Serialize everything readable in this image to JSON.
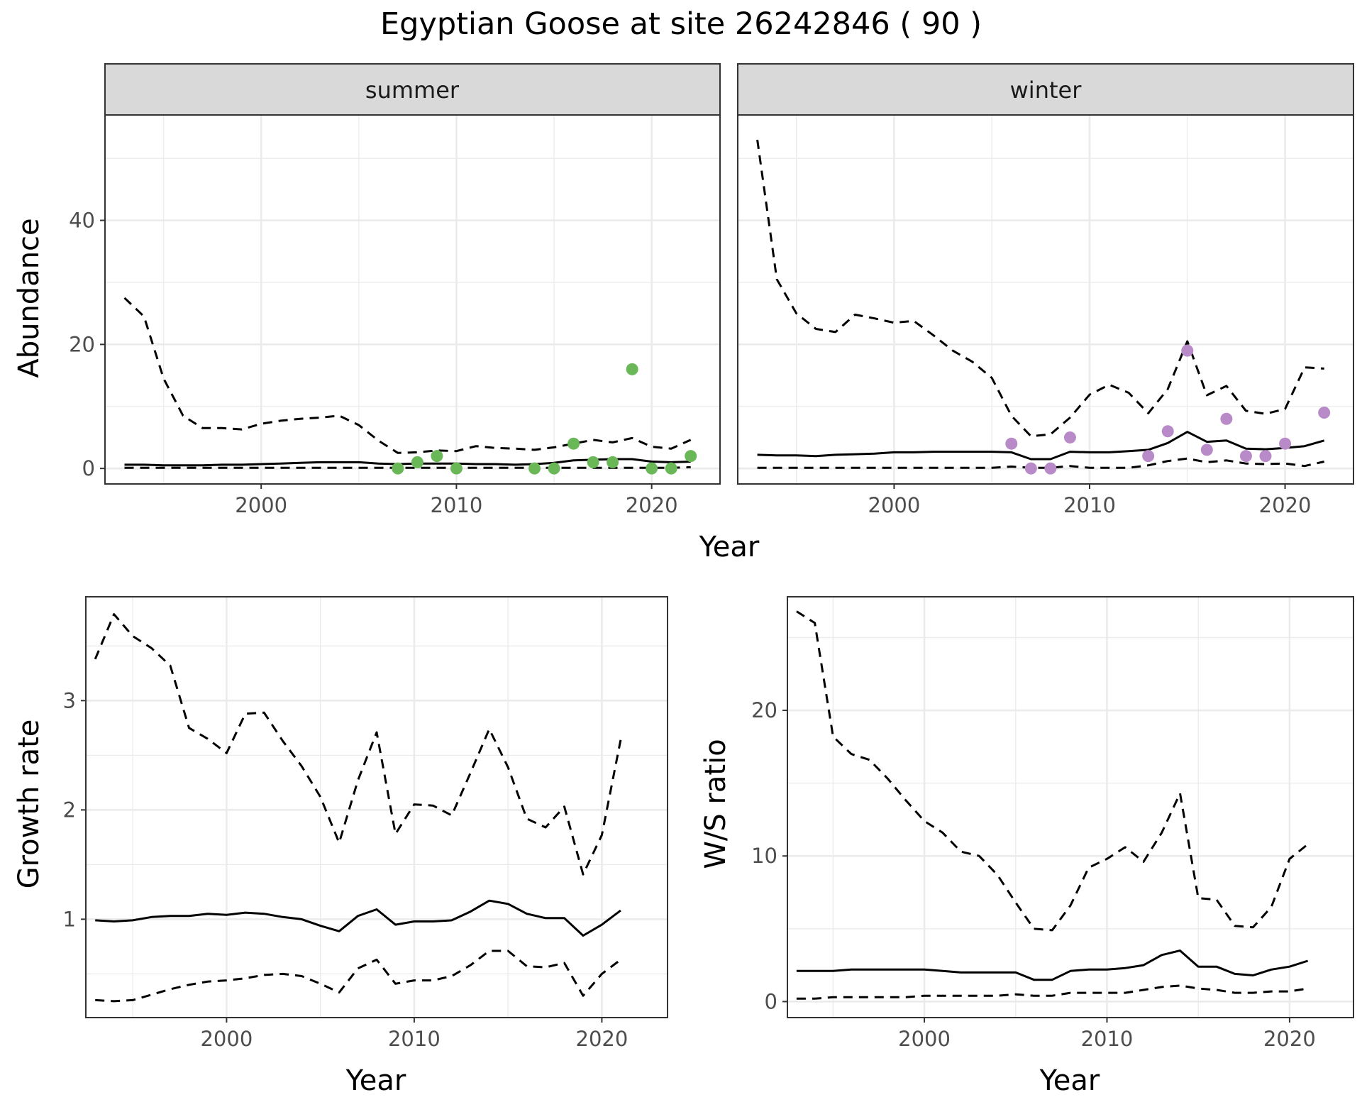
{
  "figure": {
    "title": "Egyptian Goose at site 26242846 ( 90 )",
    "colors": {
      "summer_points": "#6ab758",
      "winter_points": "#b98ac8",
      "lines": "#000000",
      "strip_fill": "#d9d9d9",
      "grid": "#ebebeb"
    }
  },
  "chart_data": [
    {
      "id": "abundance",
      "type": "line",
      "facets": [
        "summer",
        "winter"
      ],
      "shared_axis": true,
      "xlabel": "Year",
      "ylabel": "Abundance",
      "xlim": [
        1992,
        2023.5
      ],
      "ylim": [
        -2.5,
        57
      ],
      "xticks": [
        2000,
        2010,
        2020
      ],
      "yticks": [
        0,
        20,
        40
      ],
      "grid": true,
      "panels": [
        {
          "facet": "summer",
          "estimate": {
            "x": [
              1993,
              1994,
              1995,
              1996,
              1997,
              1998,
              1999,
              2000,
              2001,
              2002,
              2003,
              2004,
              2005,
              2006,
              2007,
              2008,
              2009,
              2010,
              2011,
              2012,
              2013,
              2014,
              2015,
              2016,
              2017,
              2018,
              2019,
              2020,
              2021,
              2022
            ],
            "y": [
              0.6,
              0.6,
              0.5,
              0.5,
              0.5,
              0.6,
              0.6,
              0.7,
              0.8,
              0.9,
              1.0,
              1.0,
              1.0,
              0.8,
              0.7,
              0.8,
              0.8,
              0.8,
              0.7,
              0.7,
              0.6,
              0.7,
              0.9,
              1.3,
              1.4,
              1.5,
              1.5,
              1.1,
              1.0,
              1.1
            ]
          },
          "lower": {
            "x": [
              1993,
              1994,
              1995,
              1996,
              1997,
              1998,
              1999,
              2000,
              2001,
              2002,
              2003,
              2004,
              2005,
              2006,
              2007,
              2008,
              2009,
              2010,
              2011,
              2012,
              2013,
              2014,
              2015,
              2016,
              2017,
              2018,
              2019,
              2020,
              2021,
              2022
            ],
            "y": [
              0.1,
              0.1,
              0.1,
              0.1,
              0.1,
              0.1,
              0.1,
              0.1,
              0.1,
              0.1,
              0.1,
              0.1,
              0.1,
              0.1,
              0.1,
              0.1,
              0.1,
              0.1,
              0.1,
              0.1,
              0.1,
              0.1,
              0.1,
              0.1,
              0.1,
              0.1,
              0.1,
              0.1,
              0.1,
              0.2
            ]
          },
          "upper": {
            "x": [
              1993,
              1994,
              1995,
              1996,
              1997,
              1998,
              1999,
              2000,
              2001,
              2002,
              2003,
              2004,
              2005,
              2006,
              2007,
              2008,
              2009,
              2010,
              2011,
              2012,
              2013,
              2014,
              2015,
              2016,
              2017,
              2018,
              2019,
              2020,
              2021,
              2022
            ],
            "y": [
              27.5,
              24.5,
              14.5,
              8.5,
              6.5,
              6.5,
              6.3,
              7.2,
              7.7,
              8.0,
              8.2,
              8.5,
              7.0,
              4.5,
              2.5,
              2.6,
              2.9,
              2.8,
              3.6,
              3.3,
              3.2,
              3.0,
              3.4,
              4.0,
              4.6,
              4.2,
              4.9,
              3.5,
              3.2,
              4.6
            ]
          },
          "observed": {
            "x": [
              2007,
              2008,
              2009,
              2010,
              2014,
              2015,
              2016,
              2017,
              2018,
              2019,
              2020,
              2021,
              2022
            ],
            "y": [
              0,
              1,
              2,
              0,
              0,
              0,
              4,
              1,
              1,
              16,
              0,
              0,
              2
            ]
          }
        },
        {
          "facet": "winter",
          "estimate": {
            "x": [
              1993,
              1994,
              1995,
              1996,
              1997,
              1998,
              1999,
              2000,
              2001,
              2002,
              2003,
              2004,
              2005,
              2006,
              2007,
              2008,
              2009,
              2010,
              2011,
              2012,
              2013,
              2014,
              2015,
              2016,
              2017,
              2018,
              2019,
              2020,
              2021,
              2022
            ],
            "y": [
              2.2,
              2.1,
              2.1,
              2.0,
              2.2,
              2.3,
              2.4,
              2.6,
              2.6,
              2.7,
              2.7,
              2.7,
              2.7,
              2.6,
              1.5,
              1.5,
              2.7,
              2.6,
              2.6,
              2.8,
              3.0,
              4.1,
              5.9,
              4.3,
              4.5,
              3.2,
              3.1,
              3.3,
              3.6,
              4.5
            ]
          },
          "lower": {
            "x": [
              1993,
              1994,
              1995,
              1996,
              1997,
              1998,
              1999,
              2000,
              2001,
              2002,
              2003,
              2004,
              2005,
              2006,
              2007,
              2008,
              2009,
              2010,
              2011,
              2012,
              2013,
              2014,
              2015,
              2016,
              2017,
              2018,
              2019,
              2020,
              2021,
              2022
            ],
            "y": [
              0.1,
              0.1,
              0.1,
              0.1,
              0.1,
              0.1,
              0.1,
              0.1,
              0.1,
              0.1,
              0.1,
              0.1,
              0.1,
              0.3,
              0.1,
              0.1,
              0.4,
              0.1,
              0.1,
              0.1,
              0.5,
              1.2,
              1.6,
              1.0,
              1.3,
              0.8,
              0.7,
              0.8,
              0.4,
              1.1
            ]
          },
          "upper": {
            "x": [
              1993,
              1994,
              1995,
              1996,
              1997,
              1998,
              1999,
              2000,
              2001,
              2002,
              2003,
              2004,
              2005,
              2006,
              2007,
              2008,
              2009,
              2010,
              2011,
              2012,
              2013,
              2014,
              2015,
              2016,
              2017,
              2018,
              2019,
              2020,
              2021,
              2022
            ],
            "y": [
              53.0,
              30.5,
              25.0,
              22.5,
              22.0,
              24.8,
              24.2,
              23.5,
              23.8,
              21.5,
              19.0,
              17.2,
              14.6,
              8.5,
              5.2,
              5.5,
              8.2,
              11.9,
              13.5,
              12.2,
              8.9,
              12.8,
              20.5,
              11.8,
              13.3,
              9.3,
              8.8,
              9.6,
              16.3,
              16.1
            ]
          },
          "observed": {
            "x": [
              2006,
              2007,
              2008,
              2009,
              2013,
              2014,
              2015,
              2016,
              2017,
              2018,
              2019,
              2020,
              2022
            ],
            "y": [
              4,
              0,
              0,
              5,
              2,
              6,
              19,
              3,
              8,
              2,
              2,
              4,
              9
            ]
          }
        }
      ]
    },
    {
      "id": "growth",
      "type": "line",
      "xlabel": "Year",
      "ylabel": "Growth rate",
      "xlim": [
        1992.5,
        2023.5
      ],
      "ylim": [
        0.1,
        3.95
      ],
      "xticks": [
        2000,
        2010,
        2020
      ],
      "yticks": [
        1,
        2,
        3
      ],
      "grid": true,
      "estimate": {
        "x": [
          1993,
          1994,
          1995,
          1996,
          1997,
          1998,
          1999,
          2000,
          2001,
          2002,
          2003,
          2004,
          2005,
          2006,
          2007,
          2008,
          2009,
          2010,
          2011,
          2012,
          2013,
          2014,
          2015,
          2016,
          2017,
          2018,
          2019,
          2020,
          2021
        ],
        "y": [
          0.99,
          0.98,
          0.99,
          1.02,
          1.03,
          1.03,
          1.05,
          1.04,
          1.06,
          1.05,
          1.02,
          1.0,
          0.94,
          0.89,
          1.03,
          1.09,
          0.95,
          0.98,
          0.98,
          0.99,
          1.07,
          1.17,
          1.14,
          1.05,
          1.01,
          1.01,
          0.85,
          0.95,
          1.08
        ]
      },
      "lower": {
        "x": [
          1993,
          1994,
          1995,
          1996,
          1997,
          1998,
          1999,
          2000,
          2001,
          2002,
          2003,
          2004,
          2005,
          2006,
          2007,
          2008,
          2009,
          2010,
          2011,
          2012,
          2013,
          2014,
          2015,
          2016,
          2017,
          2018,
          2019,
          2020,
          2021
        ],
        "y": [
          0.26,
          0.25,
          0.26,
          0.31,
          0.36,
          0.4,
          0.43,
          0.44,
          0.46,
          0.49,
          0.5,
          0.48,
          0.41,
          0.33,
          0.55,
          0.63,
          0.41,
          0.44,
          0.44,
          0.48,
          0.58,
          0.71,
          0.71,
          0.57,
          0.56,
          0.6,
          0.3,
          0.5,
          0.63
        ]
      },
      "upper": {
        "x": [
          1993,
          1994,
          1995,
          1996,
          1997,
          1998,
          1999,
          2000,
          2001,
          2002,
          2003,
          2004,
          2005,
          2006,
          2007,
          2008,
          2009,
          2010,
          2011,
          2012,
          2013,
          2014,
          2015,
          2016,
          2017,
          2018,
          2019,
          2020,
          2021
        ],
        "y": [
          3.38,
          3.79,
          3.59,
          3.48,
          3.32,
          2.75,
          2.65,
          2.52,
          2.88,
          2.89,
          2.63,
          2.4,
          2.12,
          1.7,
          2.27,
          2.71,
          1.78,
          2.05,
          2.04,
          1.95,
          2.34,
          2.74,
          2.39,
          1.92,
          1.84,
          2.03,
          1.41,
          1.77,
          2.64
        ]
      }
    },
    {
      "id": "ratio",
      "type": "line",
      "xlabel": "Year",
      "ylabel": "W/S ratio",
      "xlim": [
        1992.5,
        2023.5
      ],
      "ylim": [
        -1.1,
        27.8
      ],
      "xticks": [
        2000,
        2010,
        2020
      ],
      "yticks": [
        0,
        10,
        20
      ],
      "grid": true,
      "estimate": {
        "x": [
          1993,
          1994,
          1995,
          1996,
          1997,
          1998,
          1999,
          2000,
          2001,
          2002,
          2003,
          2004,
          2005,
          2006,
          2007,
          2008,
          2009,
          2010,
          2011,
          2012,
          2013,
          2014,
          2015,
          2016,
          2017,
          2018,
          2019,
          2020,
          2021
        ],
        "y": [
          2.1,
          2.1,
          2.1,
          2.2,
          2.2,
          2.2,
          2.2,
          2.2,
          2.1,
          2.0,
          2.0,
          2.0,
          2.0,
          1.5,
          1.5,
          2.1,
          2.2,
          2.2,
          2.3,
          2.5,
          3.2,
          3.5,
          2.4,
          2.4,
          1.9,
          1.8,
          2.2,
          2.4,
          2.8
        ]
      },
      "lower": {
        "x": [
          1993,
          1994,
          1995,
          1996,
          1997,
          1998,
          1999,
          2000,
          2001,
          2002,
          2003,
          2004,
          2005,
          2006,
          2007,
          2008,
          2009,
          2010,
          2011,
          2012,
          2013,
          2014,
          2015,
          2016,
          2017,
          2018,
          2019,
          2020,
          2021
        ],
        "y": [
          0.2,
          0.2,
          0.3,
          0.3,
          0.3,
          0.3,
          0.3,
          0.4,
          0.4,
          0.4,
          0.4,
          0.4,
          0.5,
          0.4,
          0.4,
          0.6,
          0.6,
          0.6,
          0.6,
          0.8,
          1.0,
          1.1,
          0.9,
          0.8,
          0.6,
          0.6,
          0.7,
          0.7,
          0.9
        ]
      },
      "upper": {
        "x": [
          1993,
          1994,
          1995,
          1996,
          1997,
          1998,
          1999,
          2000,
          2001,
          2002,
          2003,
          2004,
          2005,
          2006,
          2007,
          2008,
          2009,
          2010,
          2011,
          2012,
          2013,
          2014,
          2015,
          2016,
          2017,
          2018,
          2019,
          2020,
          2021
        ],
        "y": [
          26.8,
          26.0,
          18.2,
          17.0,
          16.6,
          15.3,
          13.8,
          12.4,
          11.6,
          10.3,
          10.0,
          8.7,
          6.8,
          5.0,
          4.9,
          6.6,
          9.2,
          9.8,
          10.6,
          9.6,
          11.6,
          14.3,
          7.1,
          7.0,
          5.2,
          5.1,
          6.5,
          9.8,
          10.8
        ]
      }
    }
  ]
}
